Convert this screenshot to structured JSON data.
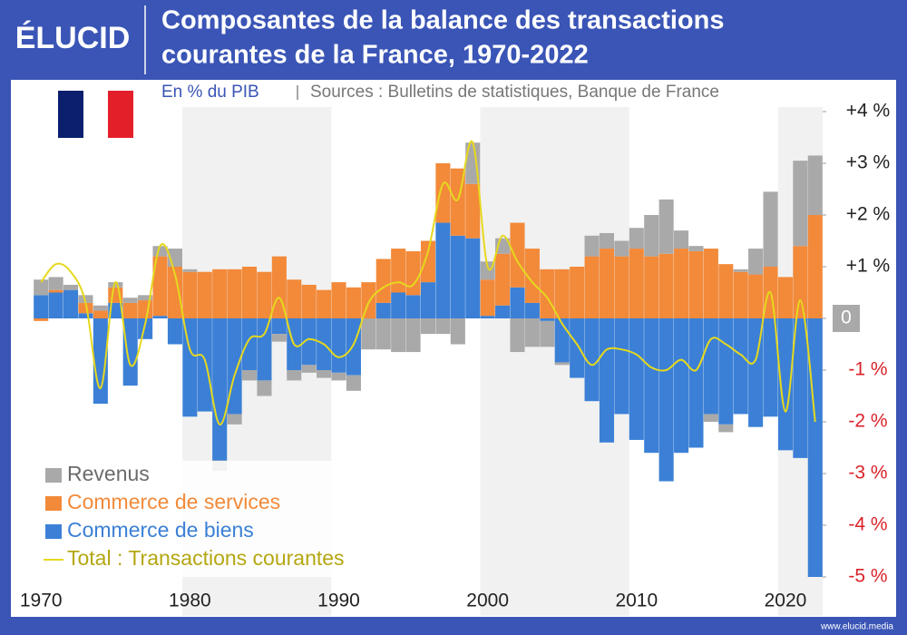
{
  "logo": "ÉLUCID",
  "footer": "www.elucid.media",
  "chart_data": {
    "type": "stacked_bar_line",
    "title": [
      "Composantes de la balance des transactions",
      "courantes de la France, 1970-2022"
    ],
    "subtitle": "En % du PIB",
    "source": "Sources : Bulletins de statistiques, Banque de France",
    "x": [
      1970,
      1971,
      1972,
      1973,
      1974,
      1975,
      1976,
      1977,
      1978,
      1979,
      1980,
      1981,
      1982,
      1983,
      1984,
      1985,
      1986,
      1987,
      1988,
      1989,
      1990,
      1991,
      1992,
      1993,
      1994,
      1995,
      1996,
      1997,
      1998,
      1999,
      2000,
      2001,
      2002,
      2003,
      2004,
      2005,
      2006,
      2007,
      2008,
      2009,
      2010,
      2011,
      2012,
      2013,
      2014,
      2015,
      2016,
      2017,
      2018,
      2019,
      2020,
      2021,
      2022
    ],
    "xlim": [
      1969.5,
      2022.5
    ],
    "xticks": [
      1970,
      1980,
      1990,
      2000,
      2010,
      2020
    ],
    "ylim": [
      -5.4,
      4.1
    ],
    "yticks": [
      {
        "value": 4,
        "label": "+4 %"
      },
      {
        "value": 3,
        "label": "+3 %"
      },
      {
        "value": 2,
        "label": "+2 %"
      },
      {
        "value": 1,
        "label": "+1 %"
      },
      0,
      {
        "value": -1,
        "label": "-1 %"
      },
      {
        "value": -2,
        "label": "-2 %"
      },
      {
        "value": -3,
        "label": "-3 %"
      },
      {
        "value": -4,
        "label": "-4 %"
      },
      {
        "value": -5,
        "label": "-5 %"
      }
    ],
    "legend": "bottom-left",
    "series": [
      {
        "name": "Commerce de biens",
        "color": "#3b80d6",
        "kind": "bar",
        "values": [
          0.45,
          0.5,
          0.55,
          0.1,
          -1.65,
          0.3,
          -1.3,
          -0.4,
          0.05,
          -0.5,
          -1.9,
          -1.8,
          -2.75,
          -1.85,
          -1.0,
          -1.2,
          -0.3,
          -1.0,
          -0.9,
          -1.0,
          -1.05,
          -1.1,
          0.0,
          0.3,
          0.5,
          0.45,
          0.7,
          1.85,
          1.6,
          1.55,
          0.05,
          0.25,
          0.6,
          0.3,
          -0.05,
          -0.85,
          -1.15,
          -1.6,
          -2.4,
          -1.85,
          -2.35,
          -2.6,
          -3.15,
          -2.6,
          -2.5,
          -1.85,
          -2.05,
          -1.85,
          -2.1,
          -1.9,
          -2.55,
          -2.7,
          -5.0
        ]
      },
      {
        "name": "Commerce de services",
        "color": "#f28a3a",
        "kind": "bar",
        "values": [
          -0.05,
          0.05,
          0.0,
          0.2,
          0.15,
          0.3,
          0.3,
          0.35,
          1.15,
          1.0,
          0.9,
          0.9,
          0.95,
          0.95,
          1.0,
          0.9,
          1.2,
          0.75,
          0.65,
          0.55,
          0.7,
          0.6,
          0.7,
          0.85,
          0.85,
          0.85,
          0.8,
          1.15,
          1.3,
          1.05,
          0.7,
          1.0,
          1.25,
          1.05,
          0.95,
          0.95,
          1.0,
          1.2,
          1.35,
          1.2,
          1.35,
          1.2,
          1.25,
          1.35,
          1.3,
          1.35,
          1.05,
          0.9,
          0.85,
          1.0,
          0.8,
          1.4,
          2.0
        ]
      },
      {
        "name": "Revenus",
        "color": "#a9a9a9",
        "kind": "bar",
        "values": [
          0.3,
          0.25,
          0.1,
          0.15,
          0.1,
          0.1,
          0.1,
          0.1,
          0.2,
          0.35,
          0.05,
          0.0,
          -0.2,
          -0.2,
          -0.2,
          -0.3,
          -0.15,
          -0.2,
          -0.15,
          -0.15,
          -0.15,
          -0.3,
          -0.6,
          -0.6,
          -0.65,
          -0.65,
          -0.3,
          -0.3,
          -0.5,
          0.8,
          0.35,
          0.3,
          -0.65,
          -0.55,
          -0.5,
          -0.05,
          0.0,
          0.4,
          0.3,
          0.3,
          0.4,
          0.8,
          1.05,
          0.35,
          0.1,
          -0.15,
          -0.15,
          0.05,
          0.5,
          1.45,
          0.0,
          1.65,
          1.15
        ]
      },
      {
        "name": "Total : Transactions courantes",
        "color": "#e6d81e",
        "kind": "line",
        "values": [
          0.7,
          1.05,
          0.9,
          0.3,
          -1.35,
          0.7,
          -0.9,
          -0.1,
          1.4,
          0.85,
          -0.6,
          -0.8,
          -2.05,
          -1.1,
          -0.4,
          -0.3,
          0.4,
          -0.5,
          -0.4,
          -0.5,
          -0.75,
          -0.5,
          0.3,
          0.6,
          0.7,
          0.65,
          1.3,
          2.6,
          2.3,
          3.4,
          1.0,
          1.6,
          1.1,
          0.7,
          0.4,
          -0.1,
          -0.5,
          -0.9,
          -0.6,
          -0.6,
          -0.7,
          -0.95,
          -1.0,
          -0.8,
          -1.0,
          -0.4,
          -0.5,
          -0.7,
          -0.8,
          0.5,
          -1.8,
          0.35,
          -2.0
        ]
      }
    ],
    "legend_order": [
      2,
      1,
      0,
      3
    ]
  }
}
